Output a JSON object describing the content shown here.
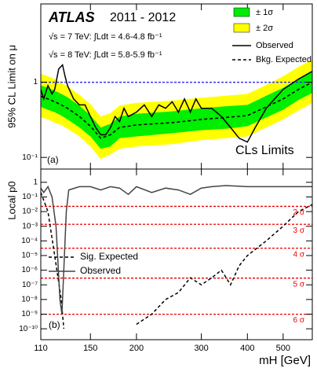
{
  "chart_data": [
    {
      "type": "limit",
      "title": "ATLAS",
      "subtitle": "2011 - 2012",
      "annotations": [
        "√s = 7 TeV: ∫Ldt = 4.6-4.8 fb⁻¹",
        "√s = 8 TeV: ∫Ldt = 5.8-5.9 fb⁻¹",
        "CLs Limits",
        "(a)"
      ],
      "ylabel": "95% CL Limit on μ",
      "log_x": true,
      "log_y": true,
      "xlim": [
        110,
        600
      ],
      "xticks": [
        110,
        150,
        200,
        300,
        400,
        500
      ],
      "ylim": [
        0.07,
        11
      ],
      "yticks": [
        {
          "value": 0.1,
          "label": "10⁻¹"
        },
        1
      ],
      "reference": {
        "value": 1,
        "color": "#3333ff"
      },
      "bands": [
        {
          "name": "± 2σ",
          "color": "#ffff00",
          "x": [
            110,
            115,
            120,
            125,
            130,
            140,
            150,
            160,
            170,
            180,
            200,
            250,
            300,
            350,
            400,
            450,
            500,
            550,
            600
          ],
          "lower": [
            0.34,
            0.32,
            0.29,
            0.27,
            0.24,
            0.19,
            0.14,
            0.095,
            0.11,
            0.13,
            0.14,
            0.15,
            0.17,
            0.18,
            0.19,
            0.25,
            0.32,
            0.42,
            0.53
          ],
          "upper": [
            1.3,
            1.2,
            1.1,
            0.98,
            0.88,
            0.68,
            0.51,
            0.35,
            0.39,
            0.49,
            0.53,
            0.57,
            0.62,
            0.66,
            0.7,
            0.92,
            1.2,
            1.6,
            2.0
          ]
        },
        {
          "name": "± 1σ",
          "color": "#00ee00",
          "x": [
            110,
            115,
            120,
            125,
            130,
            140,
            150,
            160,
            170,
            180,
            200,
            250,
            300,
            350,
            400,
            450,
            500,
            550,
            600
          ],
          "lower": [
            0.47,
            0.43,
            0.4,
            0.36,
            0.32,
            0.25,
            0.19,
            0.13,
            0.14,
            0.18,
            0.19,
            0.21,
            0.23,
            0.24,
            0.26,
            0.34,
            0.43,
            0.58,
            0.72
          ],
          "upper": [
            0.91,
            0.84,
            0.77,
            0.7,
            0.63,
            0.49,
            0.36,
            0.25,
            0.28,
            0.35,
            0.38,
            0.41,
            0.45,
            0.48,
            0.5,
            0.66,
            0.84,
            1.1,
            1.4
          ]
        }
      ],
      "series": [
        {
          "name": "Observed",
          "color": "#000000",
          "dash": false,
          "x": [
            110,
            112,
            115,
            118,
            120,
            123,
            126,
            128,
            130,
            135,
            140,
            145,
            150,
            155,
            160,
            165,
            170,
            175,
            180,
            185,
            190,
            200,
            210,
            220,
            230,
            240,
            250,
            260,
            270,
            280,
            290,
            300,
            320,
            340,
            360,
            380,
            400,
            420,
            450,
            500,
            550,
            600
          ],
          "values": [
            0.8,
            0.6,
            0.9,
            0.7,
            0.8,
            1.5,
            1.7,
            1.2,
            0.9,
            0.6,
            0.5,
            0.5,
            0.35,
            0.25,
            0.2,
            0.2,
            0.25,
            0.35,
            0.3,
            0.45,
            0.35,
            0.4,
            0.5,
            0.35,
            0.5,
            0.45,
            0.55,
            0.4,
            0.6,
            0.4,
            0.6,
            0.45,
            0.45,
            0.35,
            0.25,
            0.18,
            0.16,
            0.25,
            0.45,
            0.8,
            1.1,
            1.4
          ]
        },
        {
          "name": "Bkg. Expected",
          "color": "#000000",
          "dash": true,
          "x": [
            110,
            115,
            120,
            125,
            130,
            140,
            150,
            160,
            170,
            180,
            200,
            250,
            300,
            350,
            400,
            450,
            500,
            550,
            600
          ],
          "values": [
            0.65,
            0.6,
            0.55,
            0.5,
            0.45,
            0.35,
            0.26,
            0.18,
            0.2,
            0.25,
            0.27,
            0.29,
            0.32,
            0.34,
            0.36,
            0.47,
            0.6,
            0.8,
            1.0
          ]
        }
      ]
    },
    {
      "type": "pvalue",
      "ylabel": "Local p0",
      "xlabel": "mH [GeV]",
      "annotations": [
        "(b)"
      ],
      "log_x": true,
      "log_y": true,
      "xlim": [
        110,
        600
      ],
      "xticks": [
        110,
        150,
        200,
        300,
        400,
        500
      ],
      "ylim": [
        1.8e-11,
        8
      ],
      "yticks": [
        1,
        {
          "value": 0.1,
          "label": "10⁻¹"
        },
        {
          "value": 0.01,
          "label": "10⁻²"
        },
        {
          "value": 0.001,
          "label": "10⁻³"
        },
        {
          "value": 0.0001,
          "label": "10⁻⁴"
        },
        {
          "value": 1e-05,
          "label": "10⁻⁵"
        },
        {
          "value": 1e-06,
          "label": "10⁻⁶"
        },
        {
          "value": 1e-07,
          "label": "10⁻⁷"
        },
        {
          "value": 1e-08,
          "label": "10⁻⁸"
        },
        {
          "value": 1e-09,
          "label": "10⁻⁹"
        },
        {
          "value": 1e-10,
          "label": "10⁻¹⁰"
        }
      ],
      "sigma_lines": [
        {
          "value": 0.0228,
          "label": "2 σ"
        },
        {
          "value": 0.00135,
          "label": "3 σ"
        },
        {
          "value": 3.17e-05,
          "label": "4 σ"
        },
        {
          "value": 2.87e-07,
          "label": "5 σ"
        },
        {
          "value": 9.87e-10,
          "label": "6 σ"
        }
      ],
      "sigma_color": "#ee0000",
      "series": [
        {
          "name": "Sig. Expected",
          "color": "#000000",
          "dash": true,
          "x": [
            110,
            115,
            120,
            125,
            127,
            130,
            200,
            220,
            240,
            260,
            280,
            300,
            320,
            340,
            360,
            380,
            400,
            450,
            500,
            550,
            600
          ],
          "values": [
            0.2,
            0.01,
            1e-05,
            1e-08,
            1e-10,
            null,
            2e-10,
            1e-09,
            1e-08,
            3e-08,
            3e-07,
            1e-07,
            3e-07,
            1e-06,
            1e-07,
            2e-06,
            1e-05,
            0.0001,
            0.001,
            0.01,
            0.03
          ]
        },
        {
          "name": "Observed",
          "color": "#444444",
          "dash": false,
          "x": [
            110,
            112,
            115,
            118,
            121,
            124,
            125.5,
            127,
            129,
            131,
            140,
            150,
            160,
            170,
            180,
            190,
            200,
            220,
            240,
            260,
            280,
            300,
            320,
            350,
            400,
            450,
            500,
            550,
            600
          ],
          "values": [
            0.4,
            0.2,
            0.5,
            0.1,
            0.001,
            1e-08,
            1e-09,
            1e-06,
            0.01,
            0.3,
            0.5,
            0.5,
            0.3,
            0.5,
            0.4,
            0.15,
            0.5,
            0.2,
            0.4,
            0.3,
            0.15,
            0.4,
            0.5,
            0.6,
            0.5,
            0.5,
            0.5,
            0.5,
            0.5
          ]
        }
      ]
    }
  ]
}
